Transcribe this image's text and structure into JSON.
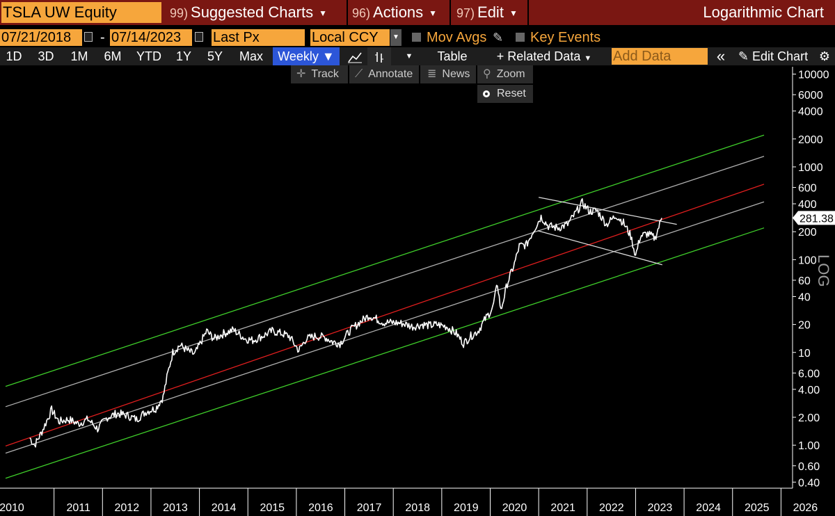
{
  "header": {
    "ticker": "TSLA UW Equity",
    "menus": [
      {
        "num": "99)",
        "label": "Suggested Charts"
      },
      {
        "num": "96)",
        "label": "Actions"
      },
      {
        "num": "97)",
        "label": "Edit"
      }
    ],
    "chart_title": "Logarithmic Chart"
  },
  "controls": {
    "start_date": "07/21/2018",
    "date_sep": "-",
    "end_date": "07/14/2023",
    "field": "Last Px",
    "currency": "Local CCY",
    "mov_avgs": "Mov Avgs",
    "key_events": "Key Events"
  },
  "toolbar": {
    "periods": [
      "1D",
      "3D",
      "1M",
      "6M",
      "YTD",
      "1Y",
      "5Y",
      "Max"
    ],
    "frequency": "Weekly ▼",
    "table": "Table",
    "related": "+ Related Data",
    "add_data_placeholder": "Add Data",
    "collapse": "«",
    "edit_chart": "Edit Chart"
  },
  "tools": {
    "track": "Track",
    "annotate": "Annotate",
    "news": "News",
    "zoom": "Zoom",
    "reset": "Reset"
  },
  "colors": {
    "price": "#ffffff",
    "mid_line": "#e01e1e",
    "outer_band": "#3fce2a",
    "inner_band": "#b0b0b0",
    "trend_lines": "#dddddd",
    "accent": "#f6a63c"
  },
  "chart_data": {
    "type": "line",
    "scale": "log",
    "ylim": [
      0.35,
      12000
    ],
    "xlim": [
      2010.0,
      2026.6
    ],
    "yticks": [
      {
        "v": 10000,
        "label": "10000"
      },
      {
        "v": 6000,
        "label": "6000"
      },
      {
        "v": 4000,
        "label": "4000"
      },
      {
        "v": 2000,
        "label": "2000"
      },
      {
        "v": 1000,
        "label": "1000"
      },
      {
        "v": 600,
        "label": "600"
      },
      {
        "v": 400,
        "label": "400"
      },
      {
        "v": 200,
        "label": "200"
      },
      {
        "v": 100,
        "label": "100"
      },
      {
        "v": 60,
        "label": "60"
      },
      {
        "v": 40,
        "label": "40"
      },
      {
        "v": 20,
        "label": "20"
      },
      {
        "v": 10,
        "label": "10"
      },
      {
        "v": 6,
        "label": "6.00"
      },
      {
        "v": 4,
        "label": "4.00"
      },
      {
        "v": 2,
        "label": "2.00"
      },
      {
        "v": 1,
        "label": "1.00"
      },
      {
        "v": 0.6,
        "label": "0.60"
      },
      {
        "v": 0.4,
        "label": "0.40"
      }
    ],
    "xticks": [
      "2010",
      "2011",
      "2012",
      "2013",
      "2014",
      "2015",
      "2016",
      "2017",
      "2018",
      "2019",
      "2020",
      "2021",
      "2022",
      "2023",
      "2024",
      "2025",
      "2026"
    ],
    "last_price": {
      "value": 281.38,
      "label": "281.38"
    },
    "y_axis_label": "LOG",
    "price": [
      [
        2010.5,
        1.2
      ],
      [
        2010.6,
        1.0
      ],
      [
        2010.75,
        1.4
      ],
      [
        2010.95,
        2.4
      ],
      [
        2011.1,
        1.8
      ],
      [
        2011.3,
        1.9
      ],
      [
        2011.5,
        1.7
      ],
      [
        2011.7,
        1.9
      ],
      [
        2011.9,
        1.5
      ],
      [
        2012.1,
        2.0
      ],
      [
        2012.3,
        2.2
      ],
      [
        2012.5,
        2.1
      ],
      [
        2012.7,
        1.9
      ],
      [
        2012.9,
        2.3
      ],
      [
        2013.1,
        2.5
      ],
      [
        2013.25,
        3.3
      ],
      [
        2013.35,
        6.0
      ],
      [
        2013.45,
        10.0
      ],
      [
        2013.6,
        12.0
      ],
      [
        2013.75,
        10.5
      ],
      [
        2013.9,
        9.5
      ],
      [
        2014.05,
        13.5
      ],
      [
        2014.15,
        17.0
      ],
      [
        2014.3,
        14.0
      ],
      [
        2014.5,
        16.0
      ],
      [
        2014.7,
        17.5
      ],
      [
        2014.8,
        16.0
      ],
      [
        2014.95,
        14.0
      ],
      [
        2015.1,
        13.5
      ],
      [
        2015.3,
        15.0
      ],
      [
        2015.5,
        17.0
      ],
      [
        2015.7,
        16.0
      ],
      [
        2015.85,
        15.0
      ],
      [
        2016.05,
        10.5
      ],
      [
        2016.2,
        14.0
      ],
      [
        2016.4,
        15.0
      ],
      [
        2016.6,
        14.5
      ],
      [
        2016.75,
        13.0
      ],
      [
        2016.9,
        12.5
      ],
      [
        2017.1,
        17.0
      ],
      [
        2017.3,
        21.0
      ],
      [
        2017.5,
        25.0
      ],
      [
        2017.65,
        23.0
      ],
      [
        2017.8,
        21.0
      ],
      [
        2018.0,
        21.0
      ],
      [
        2018.2,
        20.5
      ],
      [
        2018.4,
        19.0
      ],
      [
        2018.6,
        20.0
      ],
      [
        2018.75,
        19.5
      ],
      [
        2018.9,
        20.0
      ],
      [
        2019.1,
        19.0
      ],
      [
        2019.3,
        16.0
      ],
      [
        2019.45,
        12.5
      ],
      [
        2019.6,
        15.0
      ],
      [
        2019.75,
        17.0
      ],
      [
        2019.9,
        23.0
      ],
      [
        2020.05,
        30.0
      ],
      [
        2020.15,
        55.0
      ],
      [
        2020.22,
        28.0
      ],
      [
        2020.35,
        55.0
      ],
      [
        2020.5,
        90.0
      ],
      [
        2020.6,
        140.0
      ],
      [
        2020.75,
        145.0
      ],
      [
        2020.9,
        210.0
      ],
      [
        2021.05,
        290.0
      ],
      [
        2021.2,
        230.0
      ],
      [
        2021.4,
        220.0
      ],
      [
        2021.6,
        240.0
      ],
      [
        2021.8,
        340.0
      ],
      [
        2021.9,
        410.0
      ],
      [
        2022.05,
        330.0
      ],
      [
        2022.2,
        340.0
      ],
      [
        2022.4,
        240.0
      ],
      [
        2022.6,
        300.0
      ],
      [
        2022.75,
        250.0
      ],
      [
        2022.9,
        180.0
      ],
      [
        2023.0,
        110.0
      ],
      [
        2023.1,
        180.0
      ],
      [
        2023.25,
        190.0
      ],
      [
        2023.4,
        170.0
      ],
      [
        2023.54,
        281.38
      ]
    ],
    "channel": {
      "mid": [
        [
          2010.0,
          0.98
        ],
        [
          2025.65,
          650
        ]
      ],
      "upper_inner": [
        [
          2010.0,
          2.6
        ],
        [
          2025.65,
          1300
        ]
      ],
      "lower_inner": [
        [
          2010.0,
          0.82
        ],
        [
          2025.65,
          420
        ]
      ],
      "upper_outer": [
        [
          2010.0,
          4.3
        ],
        [
          2025.65,
          2200
        ]
      ],
      "lower_outer": [
        [
          2010.0,
          0.44
        ],
        [
          2025.65,
          220
        ]
      ]
    },
    "trend_lines": [
      [
        [
          2021.0,
          470
        ],
        [
          2023.85,
          240
        ]
      ],
      [
        [
          2020.98,
          205
        ],
        [
          2023.55,
          88
        ]
      ]
    ]
  }
}
